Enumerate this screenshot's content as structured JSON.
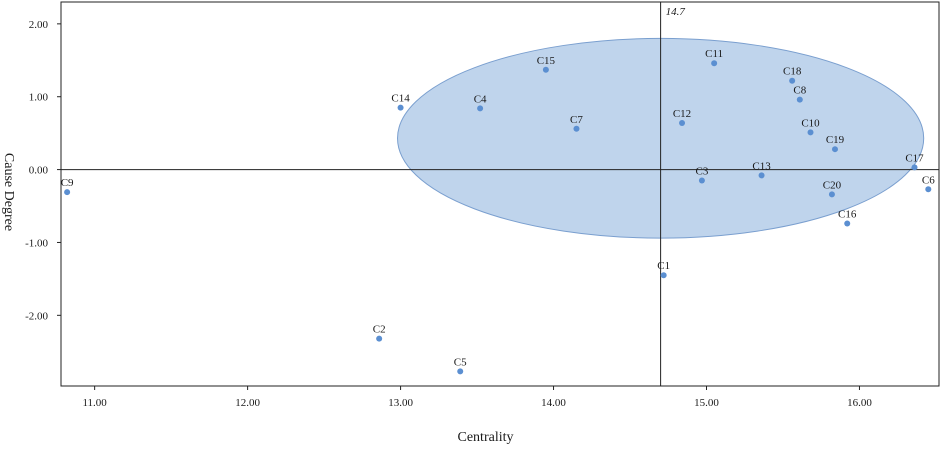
{
  "chart_data": {
    "type": "scatter",
    "xlabel": "Centrality",
    "ylabel": "Cause Degree",
    "xlim": [
      10.78,
      16.52
    ],
    "ylim": [
      -2.97,
      2.3
    ],
    "x_ticks": [
      "11.00",
      "12.00",
      "13.00",
      "14.00",
      "15.00",
      "16.00"
    ],
    "x_tick_values": [
      11,
      12,
      13,
      14,
      15,
      16
    ],
    "y_ticks": [
      "2.00",
      "1.00",
      "0.00",
      "-1.00",
      "-2.00"
    ],
    "y_tick_values": [
      2,
      1,
      0,
      -1,
      -2
    ],
    "reference_lines": {
      "x": 14.7,
      "y": 0,
      "x_label": "14.7"
    },
    "highlight_region": {
      "shape": "ellipse",
      "center": [
        14.7,
        0.43
      ],
      "radii": [
        1.72,
        1.37
      ],
      "fill": "#a9c6e6",
      "stroke": "#7a9fcf"
    },
    "point_color": "#5b8fd1",
    "points": [
      {
        "label": "C1",
        "x": 14.72,
        "y": -1.45
      },
      {
        "label": "C2",
        "x": 12.86,
        "y": -2.32
      },
      {
        "label": "C3",
        "x": 14.97,
        "y": -0.15
      },
      {
        "label": "C4",
        "x": 13.52,
        "y": 0.84
      },
      {
        "label": "C5",
        "x": 13.39,
        "y": -2.77
      },
      {
        "label": "C6",
        "x": 16.45,
        "y": -0.27
      },
      {
        "label": "C7",
        "x": 14.15,
        "y": 0.56
      },
      {
        "label": "C8",
        "x": 15.61,
        "y": 0.96
      },
      {
        "label": "C9",
        "x": 10.82,
        "y": -0.31
      },
      {
        "label": "C10",
        "x": 15.68,
        "y": 0.51
      },
      {
        "label": "C11",
        "x": 15.05,
        "y": 1.46
      },
      {
        "label": "C12",
        "x": 14.84,
        "y": 0.64
      },
      {
        "label": "C13",
        "x": 15.36,
        "y": -0.08
      },
      {
        "label": "C14",
        "x": 13.0,
        "y": 0.85
      },
      {
        "label": "C15",
        "x": 13.95,
        "y": 1.37
      },
      {
        "label": "C16",
        "x": 15.92,
        "y": -0.74
      },
      {
        "label": "C17",
        "x": 16.36,
        "y": 0.03
      },
      {
        "label": "C18",
        "x": 15.56,
        "y": 1.22
      },
      {
        "label": "C19",
        "x": 15.84,
        "y": 0.28
      },
      {
        "label": "C20",
        "x": 15.82,
        "y": -0.34
      }
    ]
  }
}
